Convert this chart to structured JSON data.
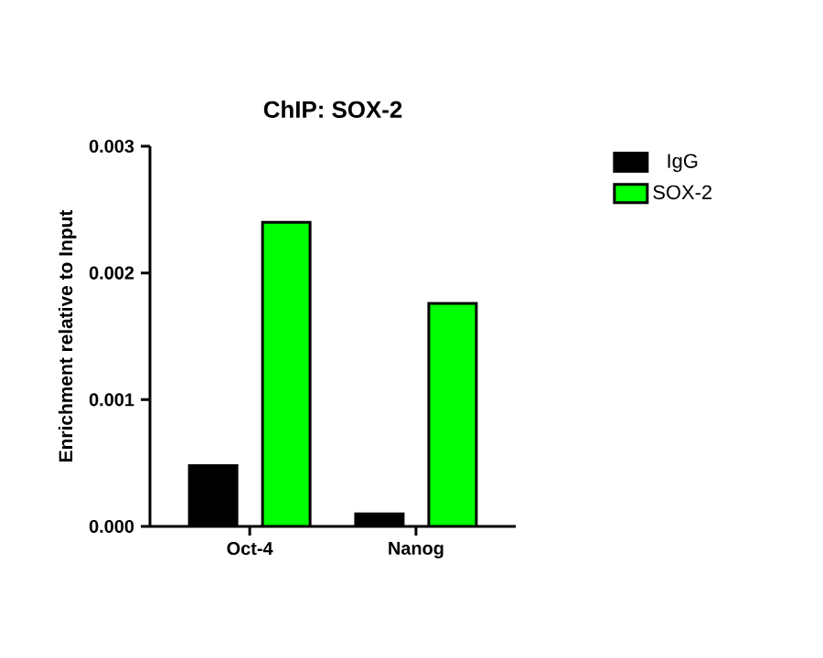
{
  "chart_data": {
    "type": "bar",
    "title": "ChIP: SOX-2",
    "ylabel": "Enrichment relative to Input",
    "categories": [
      "Oct-4",
      "Nanog"
    ],
    "series": [
      {
        "name": "IgG",
        "color": "#000000",
        "values": [
          0.00048,
          0.0001
        ]
      },
      {
        "name": "SOX-2",
        "color": "#00ff00",
        "values": [
          0.0024,
          0.00176
        ]
      }
    ],
    "ylim": [
      0,
      0.003
    ],
    "yticks": [
      {
        "value": 0,
        "label": "0.000"
      },
      {
        "value": 0.001,
        "label": "0.001"
      },
      {
        "value": 0.002,
        "label": "0.002"
      },
      {
        "value": 0.003,
        "label": "0.003"
      }
    ],
    "grid": false,
    "legend": "right"
  }
}
